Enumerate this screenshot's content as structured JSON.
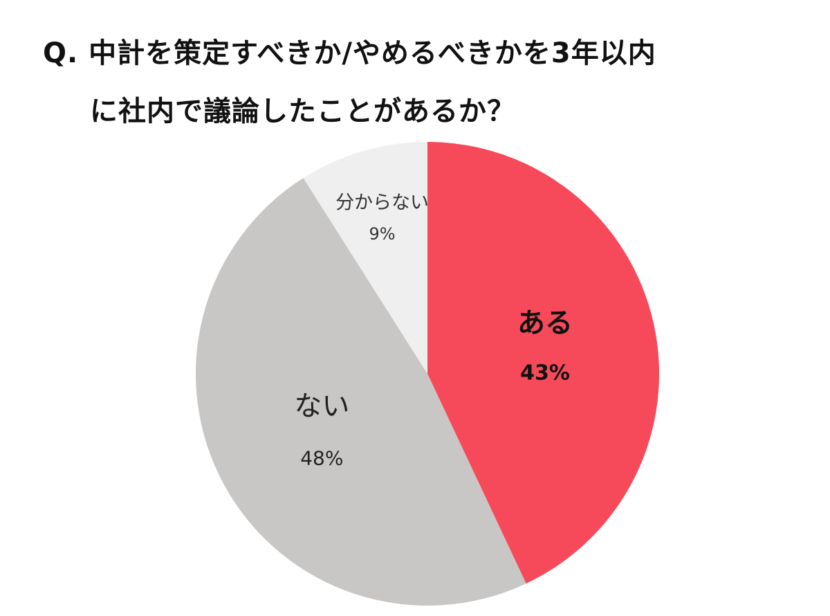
{
  "title": {
    "line1": "Q. 中計を策定すべきか/やめるべきかを3年以内",
    "line2": "に社内で議論したことがあるか？"
  },
  "chart_data": {
    "type": "pie",
    "title": "Q. 中計を策定すべきか/やめるべきかを3年以内に社内で議論したことがあるか？",
    "start": "12 o'clock, clockwise",
    "slices": [
      {
        "label": "ある",
        "value": 43,
        "value_label": "43%",
        "color": "#f64a5a",
        "text_color": "#111111",
        "bold": true
      },
      {
        "label": "ない",
        "value": 48,
        "value_label": "48%",
        "color": "#c8c7c6",
        "text_color": "#222222",
        "bold": false
      },
      {
        "label": "分からない",
        "value": 9,
        "value_label": "9%",
        "color": "#efefef",
        "text_color": "#333333",
        "bold": false
      }
    ]
  }
}
